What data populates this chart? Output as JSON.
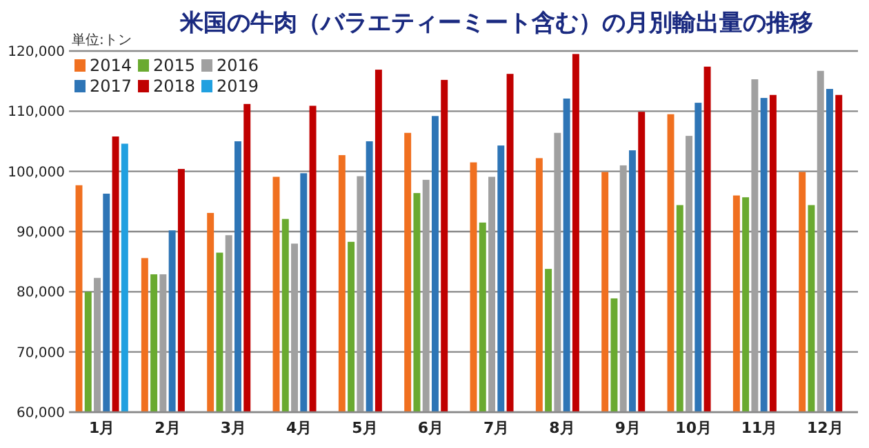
{
  "chart_data": {
    "type": "bar",
    "title": "米国の牛肉（バラエティーミート含む）の月別輸出量の推移",
    "annotations": [
      "単位:トン"
    ],
    "categories": [
      "1月",
      "2月",
      "3月",
      "4月",
      "5月",
      "6月",
      "7月",
      "8月",
      "9月",
      "10月",
      "11月",
      "12月"
    ],
    "series": [
      {
        "name": "2014",
        "color": "#f07020",
        "values": [
          97700,
          85600,
          93100,
          99100,
          102700,
          106400,
          101500,
          102200,
          99900,
          109500,
          96000,
          99900
        ]
      },
      {
        "name": "2015",
        "color": "#6aaa30",
        "values": [
          80000,
          82900,
          86500,
          92100,
          88300,
          96400,
          91500,
          83800,
          78900,
          94400,
          95700,
          94400
        ]
      },
      {
        "name": "2016",
        "color": "#a0a0a0",
        "values": [
          82300,
          82900,
          89400,
          88000,
          99200,
          98600,
          99100,
          106400,
          101000,
          105900,
          115300,
          116700
        ]
      },
      {
        "name": "2017",
        "color": "#2e75b6",
        "values": [
          96300,
          90200,
          105000,
          99700,
          105000,
          109200,
          104300,
          112100,
          103500,
          111400,
          112200,
          113700
        ]
      },
      {
        "name": "2018",
        "color": "#c00000",
        "values": [
          105800,
          100400,
          111200,
          110900,
          116900,
          115200,
          116200,
          119500,
          109900,
          117400,
          112700,
          112700
        ]
      },
      {
        "name": "2019",
        "color": "#20a0e0",
        "values": [
          104600,
          null,
          null,
          null,
          null,
          null,
          null,
          null,
          null,
          null,
          null,
          null
        ]
      }
    ],
    "ylim": [
      60000,
      120000
    ],
    "yticks": [
      {
        "value": 60000,
        "label": "60,000"
      },
      {
        "value": 70000,
        "label": "70,000"
      },
      {
        "value": 80000,
        "label": "80,000"
      },
      {
        "value": 90000,
        "label": "90,000"
      },
      {
        "value": 100000,
        "label": "100,000"
      },
      {
        "value": 110000,
        "label": "110,000"
      },
      {
        "value": 120000,
        "label": "120,000"
      }
    ],
    "grid": "y",
    "legend": "top left"
  }
}
